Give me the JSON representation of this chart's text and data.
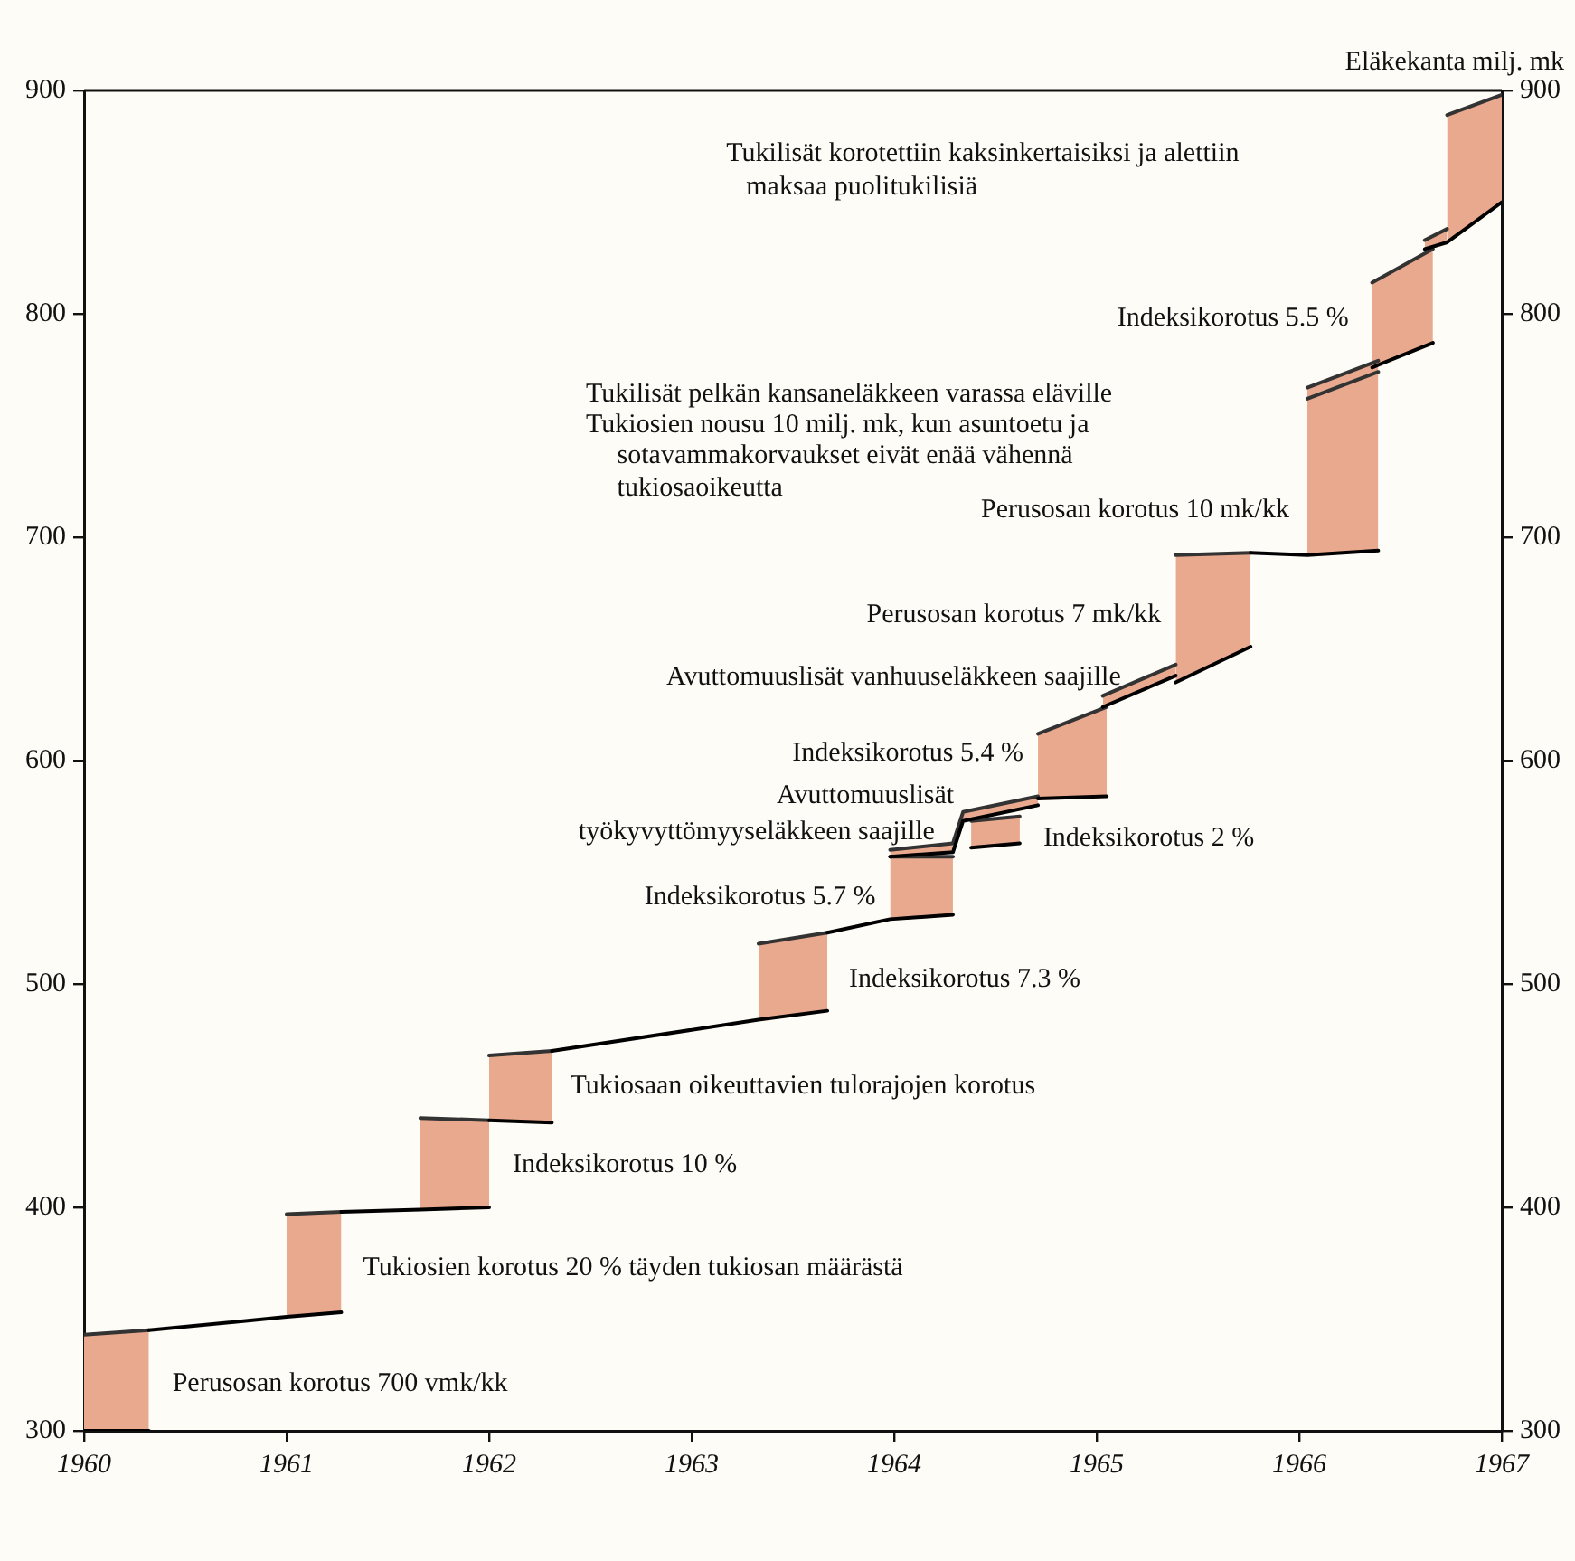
{
  "chart_data": {
    "type": "line",
    "y2label": "Eläkekanta milj. mk",
    "xlim": [
      1960,
      1967
    ],
    "xticks": [
      1960,
      1961,
      1962,
      1963,
      1964,
      1965,
      1966,
      1967
    ],
    "ylim": [
      300,
      900
    ],
    "yticks": [
      300,
      400,
      500,
      600,
      700,
      800,
      900
    ],
    "y2lim": [
      300,
      900
    ],
    "y2ticks": [
      300,
      400,
      500,
      600,
      700,
      800,
      900
    ],
    "series": [
      {
        "color": "#000000",
        "x": [
          1960.0,
          1960.32
        ],
        "values": [
          300,
          300
        ]
      },
      {
        "color": "#000000",
        "x": [
          1960.32,
          1961.0,
          1961.27
        ],
        "values": [
          345,
          351,
          353
        ]
      },
      {
        "color": "#000000",
        "x": [
          1961.27,
          1961.66,
          1962.0
        ],
        "values": [
          398,
          399,
          400
        ]
      },
      {
        "color": "#000000",
        "x": [
          1962.0,
          1962.31
        ],
        "values": [
          439,
          438
        ]
      },
      {
        "color": "#000000",
        "x": [
          1962.31,
          1963.33,
          1963.67
        ],
        "values": [
          470,
          484,
          488
        ]
      },
      {
        "color": "#000000",
        "x": [
          1963.67,
          1963.98,
          1964.29
        ],
        "values": [
          523,
          529,
          531
        ]
      },
      {
        "color": "#000000",
        "x": [
          1963.98,
          1964.29,
          1964.34,
          1964.71
        ],
        "values": [
          557,
          559,
          573,
          580
        ]
      },
      {
        "color": "#000000",
        "x": [
          1964.38,
          1964.62
        ],
        "values": [
          561,
          563
        ]
      },
      {
        "color": "#000000",
        "x": [
          1964.71,
          1965.05
        ],
        "values": [
          583,
          584
        ]
      },
      {
        "color": "#000000",
        "x": [
          1965.03,
          1965.39
        ],
        "values": [
          624,
          638
        ]
      },
      {
        "color": "#000000",
        "x": [
          1965.39,
          1965.76
        ],
        "values": [
          635,
          651
        ]
      },
      {
        "color": "#000000",
        "x": [
          1965.76,
          1966.04,
          1966.39
        ],
        "values": [
          693,
          692,
          694
        ]
      },
      {
        "color": "#000000",
        "x": [
          1966.36,
          1966.66
        ],
        "values": [
          776,
          787
        ]
      },
      {
        "color": "#000000",
        "x": [
          1966.62,
          1966.73,
          1967.0
        ],
        "values": [
          829,
          832,
          850
        ]
      },
      {
        "color": "#333333",
        "x": [
          1960.0,
          1960.32
        ],
        "values": [
          343,
          345
        ],
        "lower": [
          300,
          300
        ],
        "upper": [
          343,
          345
        ]
      },
      {
        "color": "#333333",
        "x": [
          1961.0,
          1961.27
        ],
        "values": [
          397,
          398
        ],
        "lower": [
          351,
          353
        ],
        "upper": [
          397,
          398
        ]
      },
      {
        "color": "#333333",
        "x": [
          1961.66,
          1962.0
        ],
        "values": [
          440,
          439
        ],
        "lower": [
          399,
          400
        ],
        "upper": [
          440,
          439
        ]
      },
      {
        "color": "#333333",
        "x": [
          1962.0,
          1962.31
        ],
        "values": [
          468,
          470
        ],
        "lower": [
          439,
          438
        ],
        "upper": [
          468,
          470
        ]
      },
      {
        "color": "#333333",
        "x": [
          1963.33,
          1963.67
        ],
        "values": [
          518,
          523
        ],
        "lower": [
          484,
          488
        ],
        "upper": [
          518,
          523
        ]
      },
      {
        "color": "#333333",
        "x": [
          1963.98,
          1964.29
        ],
        "values": [
          557,
          557
        ],
        "lower": [
          529,
          531
        ],
        "upper": [
          557,
          557
        ]
      },
      {
        "color": "#333333",
        "x": [
          1963.98,
          1964.29,
          1964.34,
          1964.71
        ],
        "values": [
          560,
          563,
          577,
          584
        ],
        "lower": [
          557,
          559,
          573,
          580
        ],
        "upper": [
          560,
          563,
          577,
          584
        ]
      },
      {
        "color": "#333333",
        "x": [
          1964.38,
          1964.62
        ],
        "values": [
          573,
          575
        ],
        "lower": [
          561,
          563
        ],
        "upper": [
          573,
          575
        ]
      },
      {
        "color": "#333333",
        "x": [
          1964.71,
          1965.05
        ],
        "values": [
          612,
          624
        ],
        "lower": [
          583,
          584
        ],
        "upper": [
          612,
          624
        ]
      },
      {
        "color": "#333333",
        "x": [
          1965.03,
          1965.39
        ],
        "values": [
          629,
          643
        ],
        "lower": [
          624,
          638
        ],
        "upper": [
          629,
          643
        ]
      },
      {
        "color": "#333333",
        "x": [
          1965.39,
          1965.76
        ],
        "values": [
          692,
          693
        ],
        "lower": [
          635,
          651
        ],
        "upper": [
          692,
          693
        ]
      },
      {
        "color": "#333333",
        "x": [
          1966.04,
          1966.39
        ],
        "values": [
          762,
          774
        ],
        "lower": [
          692,
          694
        ],
        "upper": [
          762,
          774
        ]
      },
      {
        "color": "#333333",
        "x": [
          1966.04,
          1966.39
        ],
        "values": [
          767,
          779
        ],
        "lower": [
          762,
          774
        ],
        "upper": [
          767,
          779
        ]
      },
      {
        "color": "#333333",
        "x": [
          1966.36,
          1966.66
        ],
        "values": [
          814,
          829
        ],
        "lower": [
          776,
          787
        ],
        "upper": [
          814,
          829
        ]
      },
      {
        "color": "#333333",
        "x": [
          1966.62,
          1966.73
        ],
        "values": [
          833,
          838
        ],
        "lower": [
          829,
          832
        ],
        "upper": [
          833,
          838
        ]
      },
      {
        "color": "#333333",
        "x": [
          1966.73,
          1967.0
        ],
        "values": [
          889,
          898
        ],
        "lower": [
          832,
          850
        ],
        "upper": [
          889,
          898
        ]
      }
    ],
    "annotations": [
      {
        "text": "Perusosan korotus 700 vmk/kk",
        "x": 1960.32,
        "y": 321
      },
      {
        "text": "Tukiosien korotus 20 % täyden tukiosan määrästä",
        "x": 1961.27,
        "y": 373
      },
      {
        "text": "Indeksikorotus 10 %",
        "x": 1962.0,
        "y": 419
      },
      {
        "text": "Tukiosaan oikeuttavien tulorajojen korotus",
        "x": 1962.31,
        "y": 454
      },
      {
        "text": "Indeksikorotus 7.3 %",
        "x": 1963.67,
        "y": 502
      },
      {
        "text": "Indeksikorotus 5.7 %",
        "x": 1963.98,
        "y": 539
      },
      {
        "text": "työkyvyttömyyseläkkeen saajille",
        "x": 1964.29,
        "y": 563
      },
      {
        "text": "Avuttomuuslisät",
        "x": 1964.34,
        "y": 577
      },
      {
        "text": "Indeksikorotus 2 %",
        "x": 1964.62,
        "y": 565
      },
      {
        "text": "Indeksikorotus 5.4 %",
        "x": 1964.71,
        "y": 603
      },
      {
        "text": "Avuttomuuslisät vanhuuseläkkeen saajille",
        "x": 1965.03,
        "y": 629
      },
      {
        "text": "Perusosan korotus 7 mk/kk",
        "x": 1965.39,
        "y": 665
      },
      {
        "text": "Perusosan korotus 10 mk/kk",
        "x": 1966.04,
        "y": 712
      },
      "tukiosaoikeutta",
      "sotavammakorvaukset eivät enää vähennä",
      "Tukiosien nousu 10 milj. mk, kun asuntoetu ja",
      "Tukilisät pelkän kansaneläkkeen varassa eläville",
      {
        "text": "Indeksikorotus 5.5 %",
        "x": 1966.36,
        "y": 798
      },
      "maksaa puolitukilisiä",
      "Tukilisät korotettiin kaksinkertaisiksi ja alettiin"
    ]
  }
}
